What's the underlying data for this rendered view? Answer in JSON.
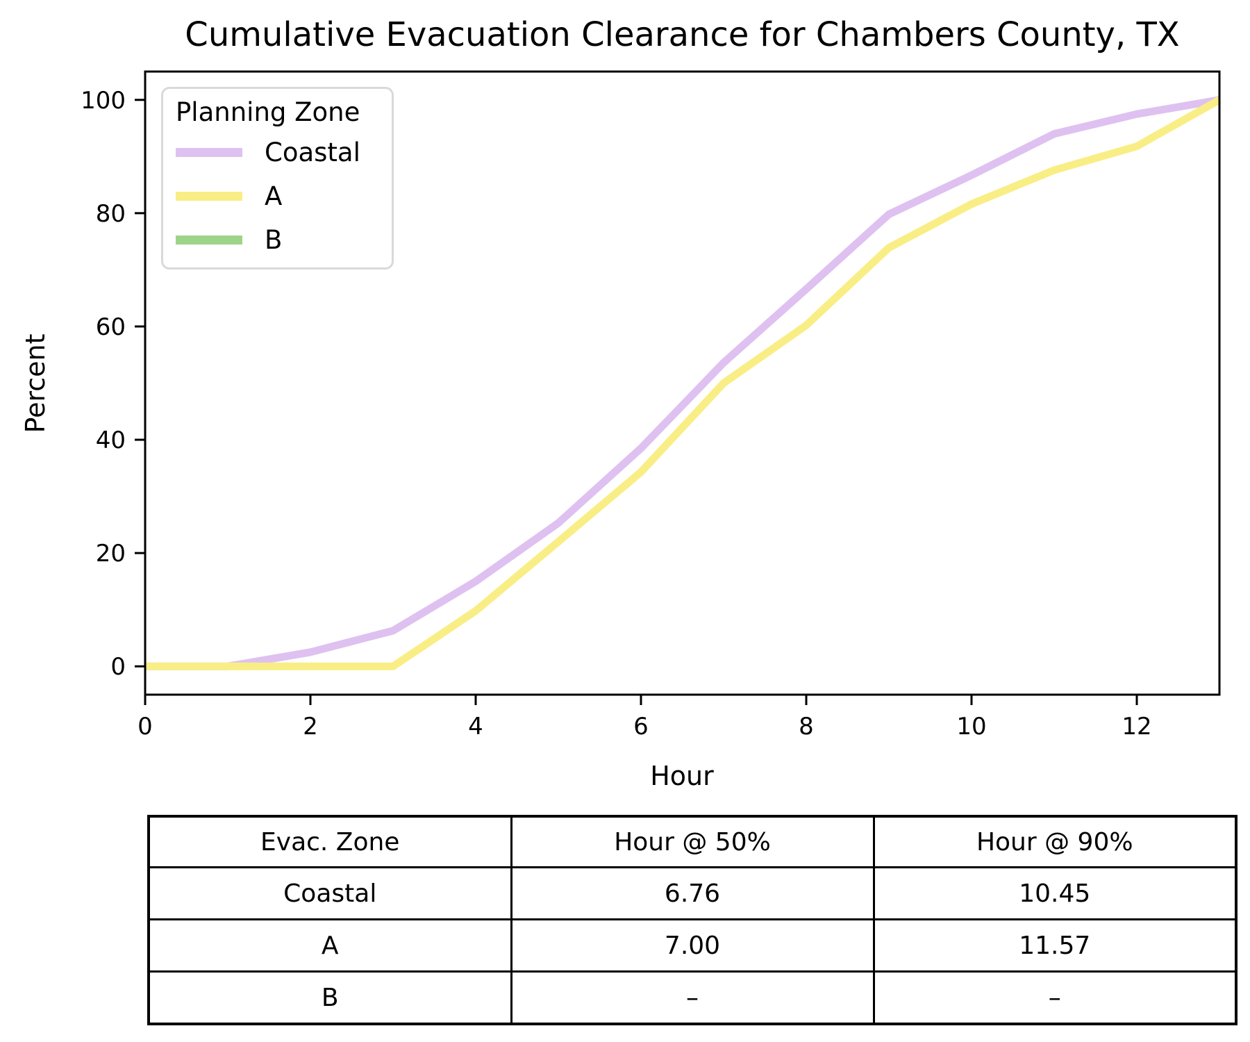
{
  "chart_data": {
    "type": "line",
    "title": "Cumulative Evacuation Clearance for Chambers County, TX",
    "xlabel": "Hour",
    "ylabel": "Percent",
    "legend_title": "Planning Zone",
    "legend_position": "upper left",
    "grid": false,
    "xlim": [
      0,
      13
    ],
    "ylim": [
      -5,
      105
    ],
    "x_ticks": [
      0,
      2,
      4,
      6,
      8,
      10,
      12
    ],
    "y_ticks": [
      0,
      20,
      40,
      60,
      80,
      100
    ],
    "x": [
      0,
      1,
      2,
      3,
      4,
      5,
      6,
      7,
      8,
      9,
      10,
      11,
      12,
      13
    ],
    "series": [
      {
        "name": "Coastal",
        "color": "#dec1f0",
        "values": [
          0,
          0,
          2.5,
          6.3,
          15,
          25.3,
          38.5,
          53.6,
          66.6,
          79.8,
          86.7,
          94.0,
          97.5,
          100
        ]
      },
      {
        "name": "A",
        "color": "#f9ee85",
        "values": [
          0,
          0,
          0,
          0,
          9.8,
          22,
          34.3,
          50,
          60.2,
          73.9,
          81.6,
          87.6,
          91.8,
          100
        ]
      },
      {
        "name": "B",
        "color": "#9ed488",
        "values": []
      }
    ]
  },
  "table": {
    "headers": [
      "Evac. Zone",
      "Hour @ 50%",
      "Hour @ 90%"
    ],
    "rows": [
      {
        "zone": "Coastal",
        "h50": "6.76",
        "h90": "10.45"
      },
      {
        "zone": "A",
        "h50": "7.00",
        "h90": "11.57"
      },
      {
        "zone": "B",
        "h50": "–",
        "h90": "–"
      }
    ]
  }
}
